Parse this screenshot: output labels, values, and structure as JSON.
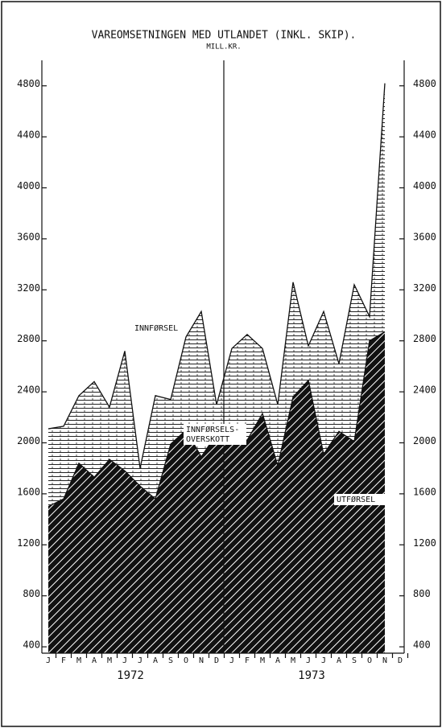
{
  "chart_data": {
    "type": "area",
    "title": "VAREOMSETNINGEN MED UTLANDET (INKL. SKIP).",
    "subtitle": "MILL.KR.",
    "categories": [
      "J",
      "F",
      "M",
      "A",
      "M",
      "J",
      "J",
      "A",
      "S",
      "O",
      "N",
      "D",
      "J",
      "F",
      "M",
      "A",
      "M",
      "J",
      "J",
      "A",
      "S",
      "O",
      "N",
      "D"
    ],
    "years": [
      "1972",
      "1973"
    ],
    "series": [
      {
        "name": "INNFØRSEL",
        "color": "#111111",
        "values": [
          2110,
          2130,
          2370,
          2480,
          2280,
          2720,
          1800,
          2370,
          2340,
          2830,
          3030,
          2300,
          2740,
          2850,
          2740,
          2300,
          3260,
          2760,
          3030,
          2620,
          3240,
          2990,
          4820,
          null
        ]
      },
      {
        "name": "UTFØRSEL",
        "color": "#111111",
        "values": [
          1500,
          1560,
          1840,
          1730,
          1870,
          1780,
          1660,
          1560,
          1990,
          2100,
          1890,
          2070,
          2070,
          2020,
          2230,
          1820,
          2360,
          2490,
          1910,
          2090,
          2010,
          2800,
          2870,
          null
        ]
      }
    ],
    "annotations": [
      "INNFØRSELS-",
      "OVERSKOTT"
    ],
    "ylim": [
      350,
      5000
    ],
    "yticks": [
      400,
      800,
      1200,
      1600,
      2000,
      2400,
      2800,
      3200,
      3600,
      4000,
      4400,
      4800
    ]
  }
}
